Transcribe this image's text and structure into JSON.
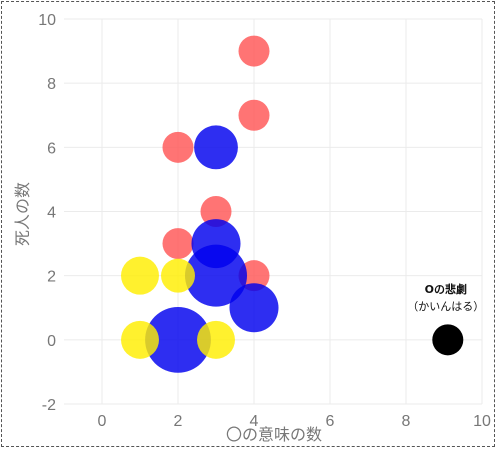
{
  "chart_data": {
    "type": "scatter",
    "title": "",
    "xlabel": "〇の意味の数",
    "ylabel": "死人の数",
    "xlim": [
      -1,
      10
    ],
    "ylim": [
      -2,
      10
    ],
    "xticks": [
      "0",
      "2",
      "4",
      "6",
      "8",
      "10"
    ],
    "yticks": [
      "-2",
      "0",
      "2",
      "4",
      "6",
      "8",
      "10"
    ],
    "grid": true,
    "legend": "none",
    "series": [
      {
        "color": "#ff5555",
        "points": [
          {
            "x": 4,
            "y": 9,
            "size": 1
          },
          {
            "x": 4,
            "y": 7,
            "size": 1
          },
          {
            "x": 2,
            "y": 6,
            "size": 1
          },
          {
            "x": 3,
            "y": 4,
            "size": 1
          },
          {
            "x": 2,
            "y": 3,
            "size": 1
          },
          {
            "x": 4,
            "y": 2,
            "size": 1
          }
        ]
      },
      {
        "color": "#0000ee",
        "points": [
          {
            "x": 3,
            "y": 6,
            "size": 2
          },
          {
            "x": 3,
            "y": 3,
            "size": 2.5
          },
          {
            "x": 3,
            "y": 2,
            "size": 4
          },
          {
            "x": 4,
            "y": 1,
            "size": 2.5
          },
          {
            "x": 2,
            "y": 0,
            "size": 4.5
          }
        ]
      },
      {
        "color": "#ffee00",
        "points": [
          {
            "x": 1,
            "y": 2,
            "size": 1.5
          },
          {
            "x": 2,
            "y": 2,
            "size": 1.2
          },
          {
            "x": 1,
            "y": 0,
            "size": 1.5
          },
          {
            "x": 3,
            "y": 0,
            "size": 1.5
          }
        ]
      },
      {
        "color": "#000000",
        "points": [
          {
            "x": 9.1,
            "y": 0,
            "size": 1
          }
        ]
      }
    ],
    "annotations": [
      {
        "x": 9.1,
        "y": 0,
        "line1": "Oの悲劇",
        "line2": "（かいんはる）"
      }
    ]
  }
}
